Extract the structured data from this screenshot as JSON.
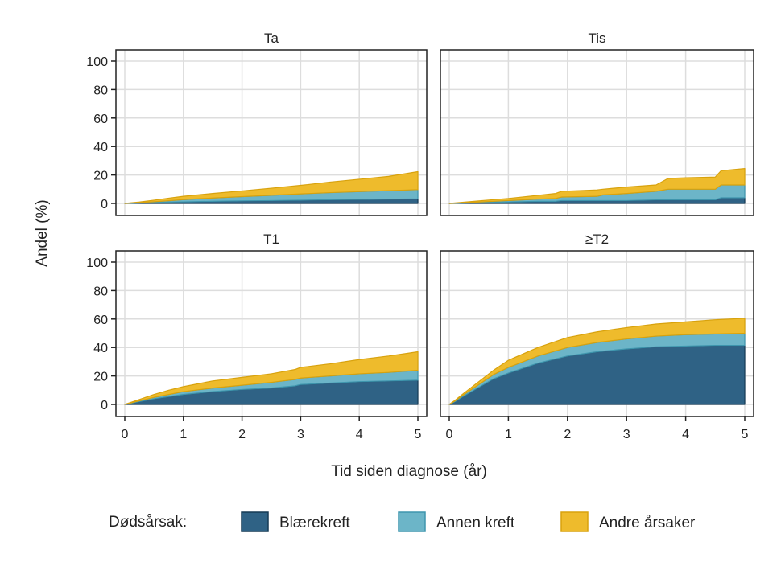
{
  "figure": {
    "ylabel": "Andel (%)",
    "xlabel": "Tid siden diagnose (år)",
    "legend_title": "Dødsårsak:"
  },
  "colors": {
    "blaerekreft": "#2f6285",
    "annen_kreft": "#6cb5c8",
    "andre_arsaker": "#eebb2c",
    "grid": "#dddddd",
    "frame": "#222222"
  },
  "chart_data": [
    {
      "type": "area",
      "stacked": true,
      "title": "Ta",
      "x": [
        0,
        0.25,
        0.5,
        0.75,
        1,
        1.5,
        2,
        2.5,
        3,
        3.5,
        4,
        4.5,
        5
      ],
      "series": [
        {
          "name": "Blærekreft",
          "values": [
            0,
            0.3,
            0.6,
            0.9,
            1.1,
            1.5,
            1.8,
            2.0,
            2.3,
            2.6,
            2.8,
            3.0,
            3.2
          ]
        },
        {
          "name": "Annen kreft",
          "values": [
            0,
            0.3,
            0.6,
            1.0,
            1.6,
            2.3,
            3.0,
            3.7,
            4.4,
            5.0,
            5.5,
            6.0,
            6.5
          ]
        },
        {
          "name": "Andre årsaker",
          "values": [
            0,
            0.4,
            1.1,
            1.8,
            2.3,
            3.2,
            4.0,
            5.0,
            6.0,
            7.4,
            8.7,
            10.0,
            12.6
          ]
        }
      ],
      "xlim": [
        0,
        5
      ],
      "ylim": [
        0,
        100
      ],
      "xticks": [
        0,
        1,
        2,
        3,
        4,
        5
      ],
      "yticks": [
        0,
        20,
        40,
        60,
        80,
        100
      ]
    },
    {
      "type": "area",
      "stacked": true,
      "title": "Tis",
      "x": [
        0,
        0.5,
        1,
        1.5,
        1.8,
        1.9,
        2.5,
        2.6,
        3,
        3.5,
        3.7,
        4,
        4.5,
        4.6,
        5
      ],
      "series": [
        {
          "name": "Blærekreft",
          "values": [
            0,
            0.5,
            1.0,
            1.5,
            1.5,
            2.0,
            2.0,
            2.0,
            2.0,
            2.5,
            2.5,
            2.5,
            2.5,
            4.0,
            4.0
          ]
        },
        {
          "name": "Annen kreft",
          "values": [
            0,
            0.5,
            1.0,
            1.5,
            2.0,
            2.5,
            3.0,
            4.0,
            5.0,
            6.0,
            7.5,
            7.5,
            7.5,
            9.0,
            9.0
          ]
        },
        {
          "name": "Andre årsaker",
          "values": [
            0,
            0.8,
            1.5,
            2.7,
            3.5,
            4.0,
            4.5,
            4.0,
            4.5,
            4.5,
            7.5,
            8.0,
            8.5,
            10.0,
            11.5
          ]
        }
      ],
      "xlim": [
        0,
        5
      ],
      "ylim": [
        0,
        100
      ],
      "xticks": [
        0,
        1,
        2,
        3,
        4,
        5
      ],
      "yticks": [
        0,
        20,
        40,
        60,
        80,
        100
      ]
    },
    {
      "type": "area",
      "stacked": true,
      "title": "T1",
      "x": [
        0,
        0.25,
        0.5,
        0.75,
        1,
        1.5,
        2,
        2.5,
        2.9,
        3,
        3.5,
        4,
        4.5,
        5
      ],
      "series": [
        {
          "name": "Blærekreft",
          "values": [
            0,
            2.0,
            4.0,
            5.5,
            7.0,
            9.0,
            10.5,
            11.5,
            13.0,
            14.0,
            15.0,
            16.0,
            16.5,
            17.0
          ]
        },
        {
          "name": "Annen kreft",
          "values": [
            0,
            0.5,
            1.0,
            1.5,
            2.0,
            2.5,
            3.0,
            4.0,
            4.5,
            4.5,
            5.0,
            5.5,
            6.0,
            7.0
          ]
        },
        {
          "name": "Andre årsaker",
          "values": [
            0,
            1.0,
            2.0,
            3.0,
            3.5,
            5.0,
            5.5,
            6.0,
            7.0,
            7.5,
            8.5,
            10.0,
            11.5,
            13.0
          ]
        }
      ],
      "xlim": [
        0,
        5
      ],
      "ylim": [
        0,
        100
      ],
      "xticks": [
        0,
        1,
        2,
        3,
        4,
        5
      ],
      "yticks": [
        0,
        20,
        40,
        60,
        80,
        100
      ]
    },
    {
      "type": "area",
      "stacked": true,
      "title": "≥T2",
      "x": [
        0,
        0.1,
        0.25,
        0.5,
        0.75,
        1,
        1.5,
        2,
        2.5,
        3,
        3.5,
        4,
        4.5,
        5
      ],
      "series": [
        {
          "name": "Blærekreft",
          "values": [
            0,
            2.0,
            6.0,
            12.0,
            18.0,
            22.0,
            29.0,
            34.0,
            37.0,
            39.0,
            40.5,
            41.0,
            41.5,
            41.5
          ]
        },
        {
          "name": "Annen kreft",
          "values": [
            0,
            0.5,
            1.0,
            2.0,
            3.0,
            4.0,
            5.0,
            6.0,
            6.5,
            7.0,
            7.5,
            8.0,
            8.0,
            8.5
          ]
        },
        {
          "name": "Andre årsaker",
          "values": [
            0,
            0.5,
            1.0,
            2.0,
            3.0,
            5.0,
            6.0,
            7.0,
            7.5,
            8.0,
            8.5,
            9.0,
            10.0,
            10.5
          ]
        }
      ],
      "xlim": [
        0,
        5
      ],
      "ylim": [
        0,
        100
      ],
      "xticks": [
        0,
        1,
        2,
        3,
        4,
        5
      ],
      "yticks": [
        0,
        20,
        40,
        60,
        80,
        100
      ]
    }
  ]
}
